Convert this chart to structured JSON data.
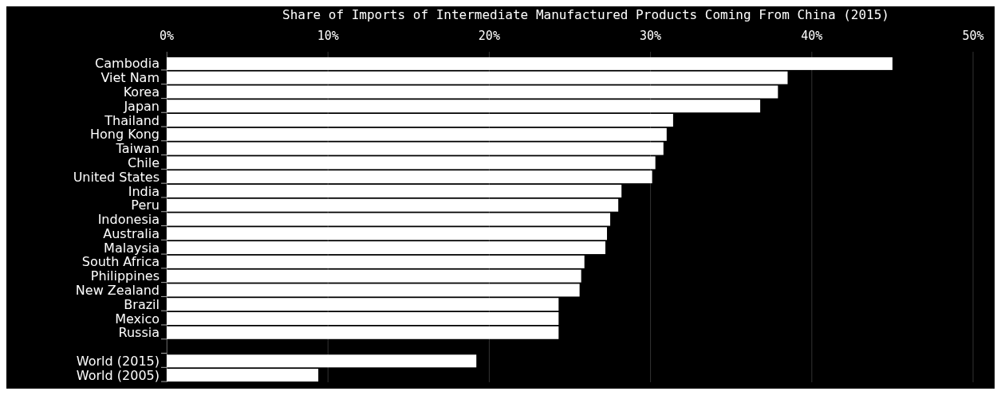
{
  "chart_data": {
    "type": "bar",
    "orientation": "horizontal",
    "title": "Share of Imports of Intermediate Manufactured Products Coming From China (2015)",
    "categories": [
      "Cambodia",
      "Viet Nam",
      "Korea",
      "Japan",
      "Thailand",
      "Hong Kong",
      "Taiwan",
      "Chile",
      "United States",
      "India",
      "Peru",
      "Indonesia",
      "Australia",
      "Malaysia",
      "South Africa",
      "Philippines",
      "New Zealand",
      "Brazil",
      "Mexico",
      "Russia",
      null,
      "World (2015)",
      "World (2005)"
    ],
    "values": [
      45.0,
      38.5,
      37.9,
      36.8,
      31.4,
      31.0,
      30.8,
      30.3,
      30.1,
      28.2,
      28.0,
      27.5,
      27.3,
      27.2,
      25.9,
      25.7,
      25.6,
      24.3,
      24.3,
      24.3,
      null,
      19.2,
      9.4
    ],
    "color": "#ffffff",
    "xlim": [
      0,
      50
    ],
    "xticks": [
      {
        "value": 0,
        "label": "0%"
      },
      {
        "value": 10,
        "label": "10%"
      },
      {
        "value": 20,
        "label": "20%"
      },
      {
        "value": 30,
        "label": "30%"
      },
      {
        "value": 40,
        "label": "40%"
      },
      {
        "value": 50,
        "label": "50%"
      }
    ],
    "grid": "x"
  }
}
